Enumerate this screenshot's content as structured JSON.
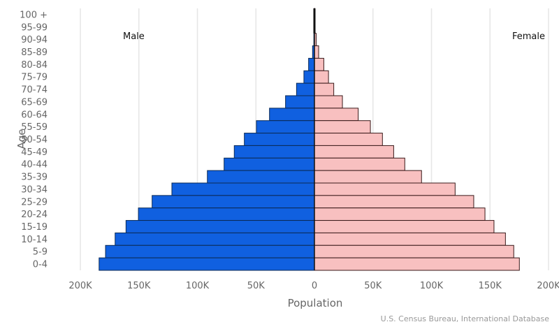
{
  "chart_data": {
    "type": "bar",
    "orientation": "horizontal-pyramid",
    "categories": [
      "100 +",
      "95-99",
      "90-94",
      "85-89",
      "80-84",
      "75-79",
      "70-74",
      "65-69",
      "60-64",
      "55-59",
      "50-54",
      "45-49",
      "40-44",
      "35-39",
      "30-34",
      "25-29",
      "20-24",
      "15-19",
      "10-14",
      "5-9",
      "0-4"
    ],
    "series": [
      {
        "name": "Male",
        "color": "#1060e0",
        "values": [
          0.1,
          0.2,
          0.5,
          1.6,
          5,
          9,
          15.3,
          24.7,
          38.4,
          49.6,
          59.9,
          68.5,
          77.2,
          91.5,
          121.8,
          138.7,
          150.4,
          161,
          170.3,
          178.5,
          184
        ]
      },
      {
        "name": "Female",
        "color": "#f8c0c0",
        "values": [
          0.2,
          0.5,
          1.5,
          3.6,
          8,
          12,
          16.5,
          23.9,
          37.4,
          47.8,
          58.1,
          67.7,
          77.2,
          91.5,
          120.2,
          136.1,
          145.7,
          153.4,
          163.2,
          170.3,
          175.1
        ]
      }
    ],
    "xlabel": "Population",
    "ylabel": "Age",
    "xlim": [
      -200000,
      200000
    ],
    "x_ticks": [
      "200K",
      "150K",
      "100K",
      "50K",
      "0",
      "50K",
      "100K",
      "150K",
      "200K"
    ],
    "grid": true,
    "source": "U.S. Census Bureau, International Database",
    "unit_note_values_in_thousands": true
  }
}
